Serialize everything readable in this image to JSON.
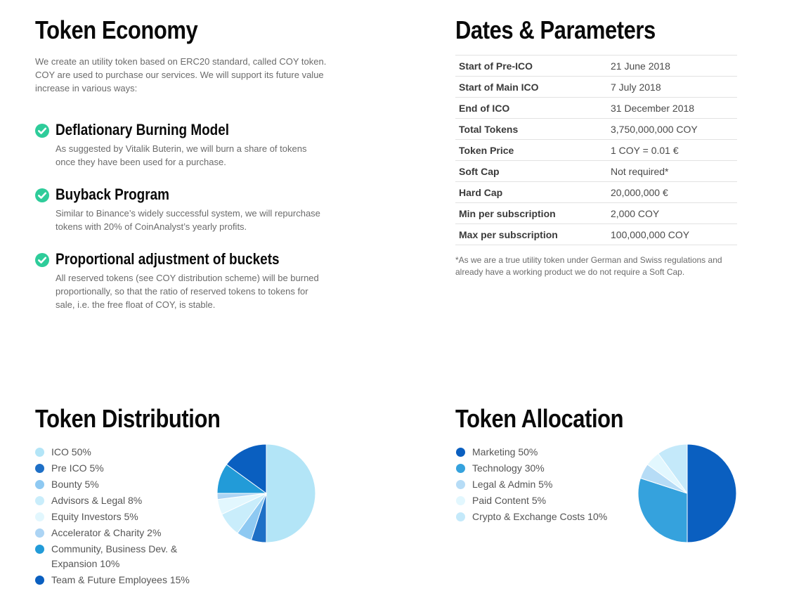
{
  "economy": {
    "title": "Token Economy",
    "intro": "We create an utility token based on ERC20 standard, called COY token. COY are used to purchase our services. We will support its future value increase in various ways:",
    "features": [
      {
        "title": "Deflationary Burning Model",
        "desc": "As suggested by Vitalik Buterin, we will burn a share of tokens once they have been used for a purchase."
      },
      {
        "title": "Buyback Program",
        "desc": "Similar to Binance’s widely successful system, we will repurchase tokens with 20% of CoinAnalyst’s yearly profits."
      },
      {
        "title": "Proportional adjustment of buckets",
        "desc": "All reserved tokens (see COY distribution scheme) will be burned proportionally, so that the ratio of reserved tokens to tokens for sale, i.e. the free float of COY, is stable."
      }
    ],
    "check_icon": "check-circle-icon",
    "check_color": "#2ecc9a"
  },
  "params": {
    "title": "Dates & Parameters",
    "rows": [
      {
        "label": "Start of Pre-ICO",
        "value": "21 June 2018"
      },
      {
        "label": "Start of Main ICO",
        "value": "7 July 2018"
      },
      {
        "label": "End of ICO",
        "value": "31 December 2018"
      },
      {
        "label": "Total Tokens",
        "value": "3,750,000,000 COY"
      },
      {
        "label": "Token Price",
        "value": "1 COY = 0.01 €"
      },
      {
        "label": "Soft Cap",
        "value": "Not required*"
      },
      {
        "label": "Hard Cap",
        "value": "20,000,000 €"
      },
      {
        "label": "Min per subscription",
        "value": "2,000 COY"
      },
      {
        "label": "Max per subscription",
        "value": "100,000,000 COY"
      }
    ],
    "footnote": "*As we are a true utility token under German and Swiss regulations and already have a working product we do not require a Soft Cap."
  },
  "distribution": {
    "title": "Token Distribution",
    "chart_data": {
      "type": "pie",
      "slices": [
        {
          "label": "ICO 50%",
          "value": 50,
          "color": "#b3e5f7"
        },
        {
          "label": "Pre ICO 5%",
          "value": 5,
          "color": "#1e6fc6"
        },
        {
          "label": "Bounty 5%",
          "value": 5,
          "color": "#8ec9f2"
        },
        {
          "label": "Advisors & Legal 8%",
          "value": 8,
          "color": "#c9edfb"
        },
        {
          "label": "Equity Investors 5%",
          "value": 5,
          "color": "#e2f7fe"
        },
        {
          "label": "Accelerator & Charity 2%",
          "value": 2,
          "color": "#acd4f4"
        },
        {
          "label": "Community, Business Dev. & Expansion 10%",
          "value": 10,
          "color": "#229bd8"
        },
        {
          "label": "Team & Future Employees 15%",
          "value": 15,
          "color": "#0a5fc0"
        }
      ]
    }
  },
  "allocation": {
    "title": "Token Allocation",
    "chart_data": {
      "type": "pie",
      "slices": [
        {
          "label": "Marketing 50%",
          "value": 50,
          "color": "#0a5fc0"
        },
        {
          "label": "Technology 30%",
          "value": 30,
          "color": "#35a2dd"
        },
        {
          "label": "Legal & Admin 5%",
          "value": 5,
          "color": "#b6dcf6"
        },
        {
          "label": "Paid Content 5%",
          "value": 5,
          "color": "#e2f7fe"
        },
        {
          "label": "Crypto & Exchange Costs 10%",
          "value": 10,
          "color": "#c4e9fa"
        }
      ]
    }
  }
}
